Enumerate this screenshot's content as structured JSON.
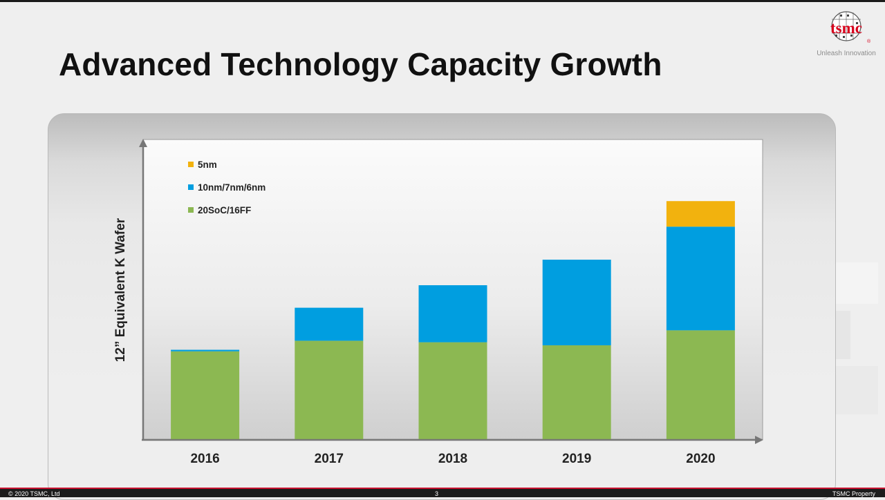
{
  "slide": {
    "title": "Advanced Technology Capacity Growth"
  },
  "logo": {
    "wordmark": "tsmc",
    "registered": "®",
    "tagline": "Unleash Innovation",
    "brand_color": "#d7001b"
  },
  "footer": {
    "copyright": "© 2020 TSMC, Ltd",
    "page_number": "3",
    "classification": "TSMC Property"
  },
  "chart_data": {
    "type": "bar",
    "stacked": true,
    "categories": [
      "2016",
      "2017",
      "2018",
      "2019",
      "2020"
    ],
    "ylabel": "12” Equivalent K Wafer",
    "xlabel": "",
    "title": "",
    "ylim": [
      0,
      100
    ],
    "y_ticks_shown": false,
    "grid": false,
    "legend_position": "top-left",
    "series": [
      {
        "name": "20SoC/16FF",
        "color": "#8cb852",
        "values": [
          29.5,
          33,
          32.5,
          31.5,
          36.5
        ]
      },
      {
        "name": "10nm/7nm/6nm",
        "color": "#009ee0",
        "values": [
          0.5,
          11,
          19,
          28.5,
          34.5
        ]
      },
      {
        "name": "5nm",
        "color": "#f2b20e",
        "values": [
          0,
          0,
          0,
          0,
          8.5
        ]
      }
    ]
  }
}
